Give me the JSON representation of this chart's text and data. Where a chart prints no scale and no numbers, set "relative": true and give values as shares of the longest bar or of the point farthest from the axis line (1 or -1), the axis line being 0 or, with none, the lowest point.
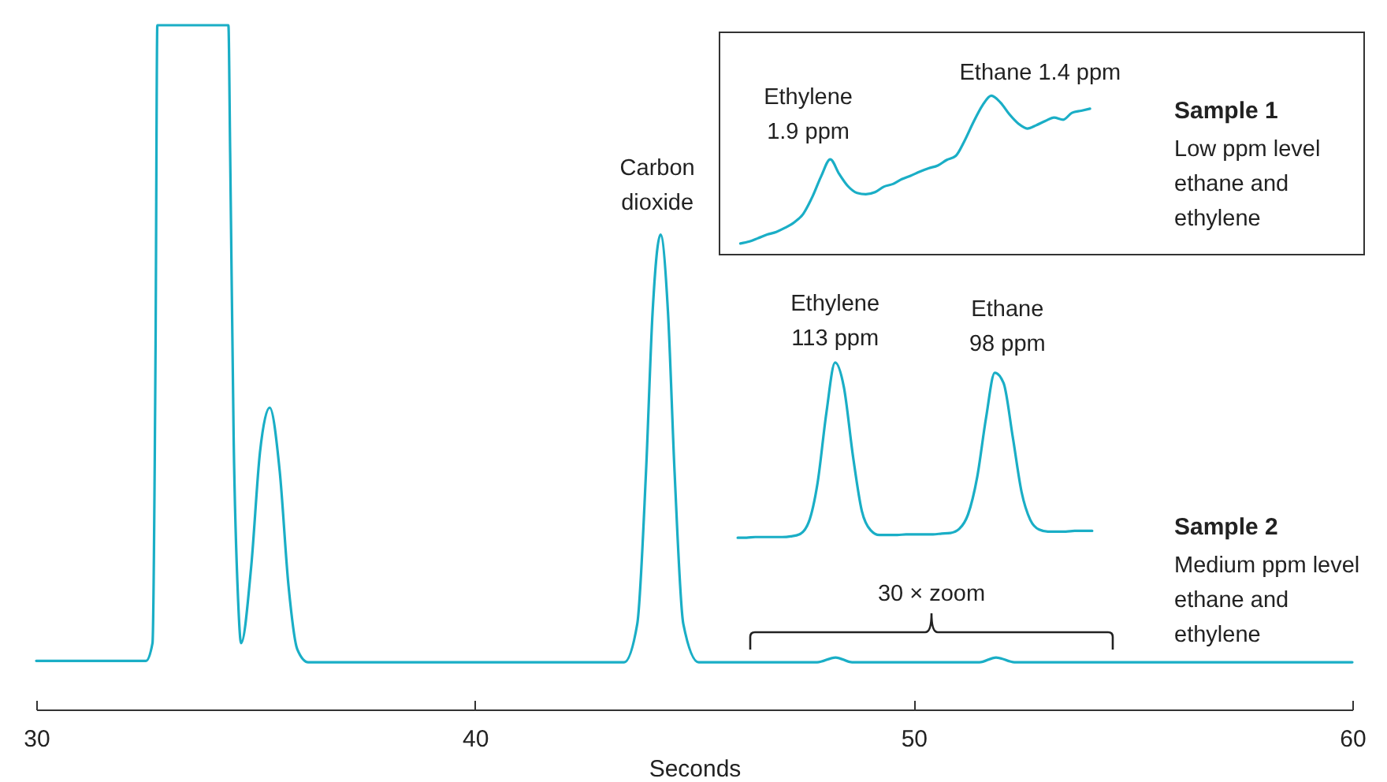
{
  "chart_data": {
    "type": "line",
    "xlabel": "Seconds",
    "x": [
      30,
      32.5,
      32.65,
      32.72,
      32.76,
      34.38,
      34.42,
      34.5,
      34.6,
      34.67,
      34.9,
      35.1,
      35.32,
      35.55,
      35.75,
      35.95,
      36.2,
      43.4,
      43.7,
      43.9,
      44.05,
      44.23,
      44.4,
      44.55,
      44.75,
      45.1,
      47.8,
      48.22,
      48.6,
      51.5,
      51.88,
      52.3,
      60
    ],
    "xlim": [
      30,
      60
    ],
    "xticks": [
      30,
      40,
      50,
      60
    ],
    "relative": true,
    "series": [
      {
        "color": "#1aaec6",
        "values": [
          0.071,
          0.071,
          0.097,
          0.535,
          1,
          1,
          0.814,
          0.395,
          0.162,
          0.097,
          0.209,
          0.376,
          0.441,
          0.348,
          0.181,
          0.088,
          0.069,
          0.069,
          0.125,
          0.348,
          0.581,
          0.694,
          0.581,
          0.348,
          0.125,
          0.069,
          0.069,
          0.076,
          0.069,
          0.069,
          0.076,
          0.069,
          0.069
        ]
      },
      {
        "name": "Sample 1",
        "color": "#1aaec6",
        "x": [
          46.05,
          46.26,
          46.46,
          46.66,
          46.87,
          47.07,
          47.28,
          47.48,
          47.69,
          47.89,
          48.1,
          48.3,
          48.5,
          48.71,
          48.91,
          49.12,
          49.32,
          49.53,
          49.73,
          49.93,
          50.14,
          50.34,
          50.55,
          50.75,
          50.96,
          51.16,
          51.36,
          51.57,
          51.77,
          51.98,
          52.18,
          52.39,
          52.59,
          52.8,
          53,
          53.2,
          53.41,
          53.61,
          53.82,
          54.02
        ],
        "values": [
          0.681,
          0.684,
          0.689,
          0.694,
          0.698,
          0.704,
          0.712,
          0.724,
          0.749,
          0.779,
          0.804,
          0.783,
          0.765,
          0.755,
          0.753,
          0.756,
          0.764,
          0.768,
          0.775,
          0.78,
          0.786,
          0.791,
          0.795,
          0.803,
          0.809,
          0.831,
          0.858,
          0.883,
          0.897,
          0.887,
          0.87,
          0.856,
          0.849,
          0.854,
          0.86,
          0.865,
          0.862,
          0.872,
          0.875,
          0.878
        ]
      },
      {
        "name": "Sample 2",
        "color": "#1aaec6",
        "x": [
          45.99,
          46.19,
          46.39,
          46.6,
          46.8,
          47,
          47.2,
          47.4,
          47.61,
          47.81,
          48.01,
          48.21,
          48.41,
          48.62,
          48.82,
          49.02,
          49.22,
          49.43,
          49.63,
          49.83,
          50.03,
          50.23,
          50.44,
          50.64,
          50.84,
          51.04,
          51.24,
          51.45,
          51.65,
          51.85,
          52.05,
          52.26,
          52.46,
          52.66,
          52.86,
          53.06,
          53.26,
          53.47,
          53.67,
          53.87,
          54.07
        ],
        "values": [
          0.251,
          0.251,
          0.252,
          0.252,
          0.252,
          0.252,
          0.253,
          0.256,
          0.274,
          0.331,
          0.433,
          0.507,
          0.471,
          0.369,
          0.29,
          0.262,
          0.255,
          0.255,
          0.255,
          0.256,
          0.256,
          0.256,
          0.256,
          0.257,
          0.258,
          0.264,
          0.285,
          0.34,
          0.426,
          0.492,
          0.477,
          0.398,
          0.318,
          0.277,
          0.263,
          0.26,
          0.26,
          0.26,
          0.261,
          0.261,
          0.261
        ]
      }
    ],
    "annotations": [
      {
        "text": "Carbon\ndioxide",
        "x": 44.23,
        "y": 0.694
      },
      {
        "text": "Ethylene\n1.9 ppm",
        "x": 48.1,
        "y": 0.804
      },
      {
        "text": "Ethane 1.4 ppm",
        "x": 51.77,
        "y": 0.897
      },
      {
        "text": "Ethylene\n113 ppm",
        "x": 48.21,
        "y": 0.507
      },
      {
        "text": "Ethane\n98 ppm",
        "x": 51.85,
        "y": 0.492
      },
      "30 × zoom",
      "Low ppm level\nethane and\nethylene",
      "Medium ppm level\nethane and\nethylene"
    ]
  }
}
